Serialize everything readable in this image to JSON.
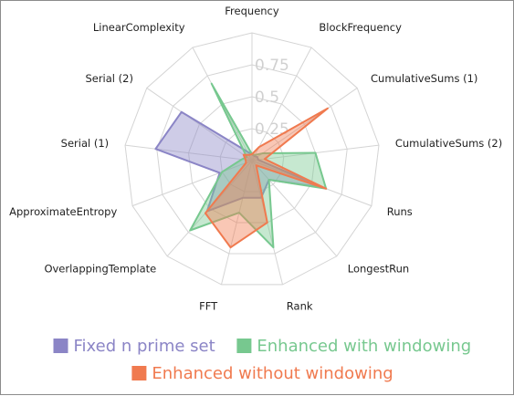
{
  "chart_data": {
    "type": "radar",
    "axes": [
      "Frequency",
      "BlockFrequency",
      "CumulativeSums (1)",
      "CumulativeSums (2)",
      "Runs",
      "LongestRun",
      "Rank",
      "FFT",
      "OverlappingTemplate",
      "ApproximateEntropy",
      "Serial (1)",
      "Serial (2)",
      "LinearComplexity"
    ],
    "ticks": [
      "0.25",
      "0.5",
      "0.75"
    ],
    "range": [
      0,
      1
    ],
    "grid": true,
    "legend_position": "bottom",
    "series": [
      {
        "name": "Fixed n prime set",
        "color": "#8b85c6",
        "values": [
          0.05,
          0.04,
          0.05,
          0.05,
          0.6,
          0.2,
          0.3,
          0.3,
          0.53,
          0.27,
          0.76,
          0.67,
          0.08
        ]
      },
      {
        "name": "Enhanced with windowing",
        "color": "#77c88f",
        "values": [
          0.05,
          0.05,
          0.1,
          0.5,
          0.62,
          0.2,
          0.7,
          0.42,
          0.73,
          0.25,
          0.08,
          0.05,
          0.68
        ]
      },
      {
        "name": "Enhanced without windowing",
        "color": "#f07a4f",
        "values": [
          0.05,
          0.12,
          0.72,
          0.1,
          0.62,
          0.05,
          0.5,
          0.7,
          0.55,
          0.05,
          0.05,
          0.08,
          0.05
        ]
      }
    ]
  }
}
